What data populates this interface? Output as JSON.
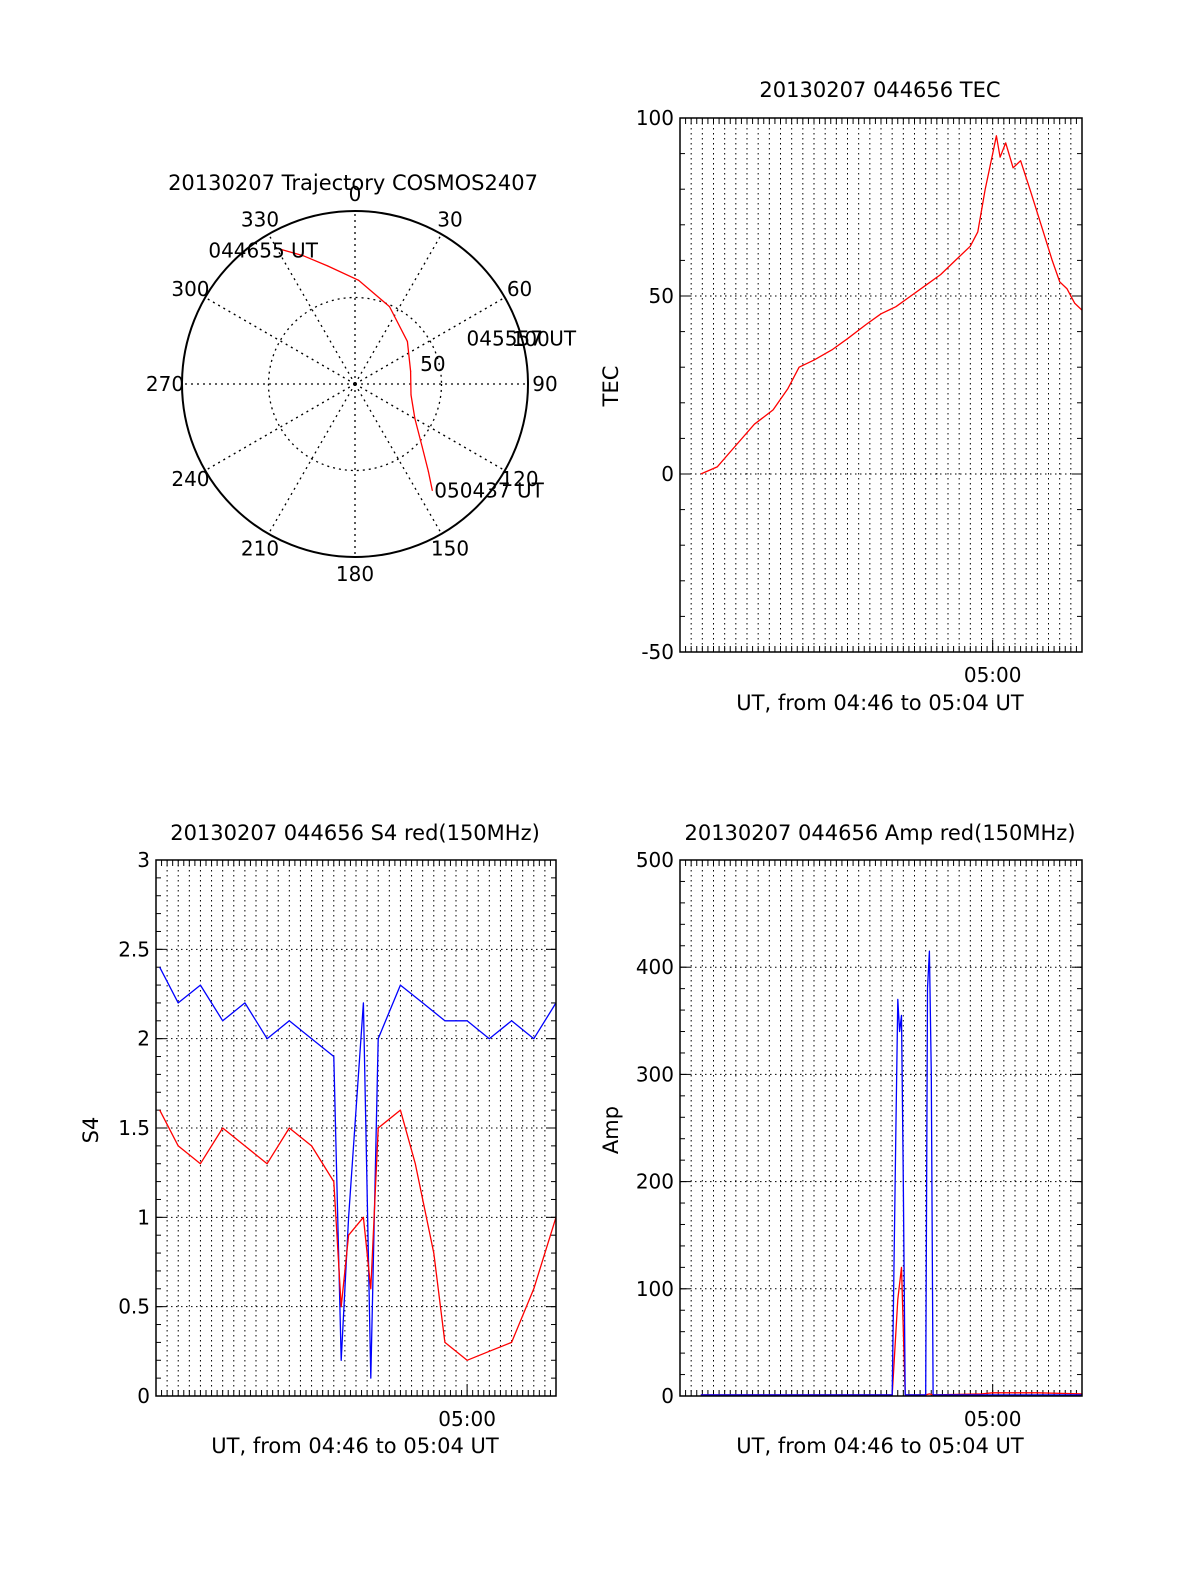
{
  "chart_data": [
    {
      "id": "trajectory",
      "type": "scatter",
      "projection": "polar",
      "title": "20130207 Trajectory COSMOS2407",
      "azimuth_labels": [
        {
          "az": 0,
          "label": "0"
        },
        {
          "az": 30,
          "label": "30"
        },
        {
          "az": 60,
          "label": "60"
        },
        {
          "az": 90,
          "label": "90"
        },
        {
          "az": 120,
          "label": "120"
        },
        {
          "az": 150,
          "label": "150"
        },
        {
          "az": 180,
          "label": "180"
        },
        {
          "az": 210,
          "label": "210"
        },
        {
          "az": 240,
          "label": "240"
        },
        {
          "az": 270,
          "label": "270"
        },
        {
          "az": 300,
          "label": "300"
        },
        {
          "az": 330,
          "label": "330"
        }
      ],
      "radial_labels": [
        "50",
        "100"
      ],
      "radial_range": [
        0,
        100
      ],
      "grid": true,
      "series": [
        {
          "color": "#ff0000",
          "points": [
            {
              "az": 331,
              "r": 89
            },
            {
              "az": 338,
              "r": 80
            },
            {
              "az": 347,
              "r": 70
            },
            {
              "az": 2,
              "r": 60
            },
            {
              "az": 24,
              "r": 49
            },
            {
              "az": 51,
              "r": 39
            },
            {
              "az": 77,
              "r": 33
            },
            {
              "az": 101,
              "r": 33
            },
            {
              "az": 120,
              "r": 40
            },
            {
              "az": 133,
              "r": 53
            },
            {
              "az": 140,
              "r": 66
            },
            {
              "az": 144,
              "r": 76
            }
          ]
        }
      ],
      "annotations": [
        {
          "text": "044655 UT",
          "az": 331,
          "r": 89
        },
        {
          "text": "045557 UT",
          "az": 72,
          "r": 38
        },
        {
          "text": "050437 UT",
          "az": 144,
          "r": 76
        }
      ]
    },
    {
      "id": "tec",
      "type": "line",
      "title": "20130207 044656 TEC",
      "ylabel": "TEC",
      "xlabel": "UT, from 04:46 to 05:04 UT",
      "xlim": [
        "04:46:00",
        "05:04:00"
      ],
      "ylim": [
        -50,
        100
      ],
      "yticks": [
        "-50",
        "0",
        "50",
        "100"
      ],
      "xticks": [
        {
          "t": "05:00:00",
          "label": "05:00"
        }
      ],
      "grid": true,
      "series": [
        {
          "color": "#ff0000",
          "points": [
            [
              "04:46:56",
              0
            ],
            [
              "04:47:40",
              2
            ],
            [
              "04:48:30",
              8
            ],
            [
              "04:49:20",
              14
            ],
            [
              "04:50:10",
              18
            ],
            [
              "04:50:50",
              24
            ],
            [
              "04:51:20",
              30
            ],
            [
              "04:52:00",
              32
            ],
            [
              "04:52:50",
              35
            ],
            [
              "04:53:30",
              38
            ],
            [
              "04:54:20",
              42
            ],
            [
              "04:55:00",
              45
            ],
            [
              "04:55:40",
              47
            ],
            [
              "04:56:20",
              50
            ],
            [
              "04:57:00",
              53
            ],
            [
              "04:57:40",
              56
            ],
            [
              "04:58:20",
              60
            ],
            [
              "04:59:00",
              64
            ],
            [
              "04:59:20",
              68
            ],
            [
              "04:59:40",
              80
            ],
            [
              "05:00:00",
              90
            ],
            [
              "05:00:10",
              95
            ],
            [
              "05:00:20",
              89
            ],
            [
              "05:00:35",
              93
            ],
            [
              "05:00:55",
              86
            ],
            [
              "05:01:15",
              88
            ],
            [
              "05:01:40",
              80
            ],
            [
              "05:02:10",
              70
            ],
            [
              "05:02:40",
              60
            ],
            [
              "05:03:00",
              54
            ],
            [
              "05:03:20",
              52
            ],
            [
              "05:03:40",
              48
            ],
            [
              "05:04:00",
              46
            ]
          ]
        }
      ]
    },
    {
      "id": "s4",
      "type": "line",
      "title": "20130207 044656 S4 red(150MHz)",
      "ylabel": "S4",
      "xlabel": "UT, from 04:46 to 05:04 UT",
      "xlim": [
        "04:46:00",
        "05:04:00"
      ],
      "ylim": [
        0,
        3
      ],
      "yticks": [
        "0",
        "0.5",
        "1",
        "1.5",
        "2",
        "2.5",
        "3"
      ],
      "xticks": [
        {
          "t": "05:00:00",
          "label": "05:00"
        }
      ],
      "grid": true,
      "series": [
        {
          "color": "#0000ff",
          "points": [
            [
              "04:46:10",
              2.4
            ],
            [
              "04:47:00",
              2.2
            ],
            [
              "04:48:00",
              2.3
            ],
            [
              "04:49:00",
              2.1
            ],
            [
              "04:50:00",
              2.2
            ],
            [
              "04:51:00",
              2.0
            ],
            [
              "04:52:00",
              2.1
            ],
            [
              "04:53:00",
              2.0
            ],
            [
              "04:54:00",
              1.9
            ],
            [
              "04:54:20",
              0.2
            ],
            [
              "04:54:40",
              1.0
            ],
            [
              "04:55:20",
              2.2
            ],
            [
              "04:55:40",
              0.1
            ],
            [
              "04:56:00",
              2.0
            ],
            [
              "04:57:00",
              2.3
            ],
            [
              "04:58:00",
              2.2
            ],
            [
              "04:59:00",
              2.1
            ],
            [
              "05:00:00",
              2.1
            ],
            [
              "05:01:00",
              2.0
            ],
            [
              "05:02:00",
              2.1
            ],
            [
              "05:03:00",
              2.0
            ],
            [
              "05:04:00",
              2.2
            ]
          ]
        },
        {
          "color": "#ff0000",
          "points": [
            [
              "04:46:10",
              1.6
            ],
            [
              "04:47:00",
              1.4
            ],
            [
              "04:48:00",
              1.3
            ],
            [
              "04:49:00",
              1.5
            ],
            [
              "04:50:00",
              1.4
            ],
            [
              "04:51:00",
              1.3
            ],
            [
              "04:52:00",
              1.5
            ],
            [
              "04:53:00",
              1.4
            ],
            [
              "04:54:00",
              1.2
            ],
            [
              "04:54:20",
              0.5
            ],
            [
              "04:54:40",
              0.9
            ],
            [
              "04:55:20",
              1.0
            ],
            [
              "04:55:40",
              0.6
            ],
            [
              "04:56:00",
              1.5
            ],
            [
              "04:57:00",
              1.6
            ],
            [
              "04:57:40",
              1.3
            ],
            [
              "04:58:30",
              0.8
            ],
            [
              "04:59:00",
              0.3
            ],
            [
              "05:00:00",
              0.2
            ],
            [
              "05:01:00",
              0.25
            ],
            [
              "05:02:00",
              0.3
            ],
            [
              "05:03:00",
              0.6
            ],
            [
              "05:04:00",
              1.0
            ]
          ]
        }
      ]
    },
    {
      "id": "amp",
      "type": "line",
      "title": "20130207 044656 Amp red(150MHz)",
      "ylabel": "Amp",
      "xlabel": "UT, from 04:46 to 05:04 UT",
      "xlim": [
        "04:46:00",
        "05:04:00"
      ],
      "ylim": [
        0,
        500
      ],
      "yticks": [
        "0",
        "100",
        "200",
        "300",
        "400",
        "500"
      ],
      "xticks": [
        {
          "t": "05:00:00",
          "label": "05:00"
        }
      ],
      "grid": true,
      "series": [
        {
          "color": "#ff0000",
          "points": [
            [
              "04:46:56",
              1
            ],
            [
              "04:55:30",
              1
            ],
            [
              "04:55:45",
              90
            ],
            [
              "04:55:55",
              120
            ],
            [
              "04:56:05",
              1
            ],
            [
              "04:57:00",
              1
            ],
            [
              "04:57:10",
              2
            ],
            [
              "04:57:20",
              1
            ],
            [
              "04:59:30",
              2
            ],
            [
              "05:00:00",
              3
            ],
            [
              "05:02:00",
              3
            ],
            [
              "05:04:00",
              2
            ]
          ]
        },
        {
          "color": "#0000ff",
          "points": [
            [
              "04:46:56",
              1
            ],
            [
              "04:55:30",
              1
            ],
            [
              "04:55:40",
              250
            ],
            [
              "04:55:45",
              370
            ],
            [
              "04:55:50",
              340
            ],
            [
              "04:55:55",
              355
            ],
            [
              "04:56:00",
              200
            ],
            [
              "04:56:05",
              1
            ],
            [
              "04:57:00",
              1
            ],
            [
              "04:57:05",
              380
            ],
            [
              "04:57:10",
              415
            ],
            [
              "04:57:15",
              300
            ],
            [
              "04:57:20",
              1
            ],
            [
              "05:00:00",
              1
            ],
            [
              "05:02:00",
              1
            ],
            [
              "05:04:00",
              1
            ]
          ]
        }
      ]
    }
  ]
}
